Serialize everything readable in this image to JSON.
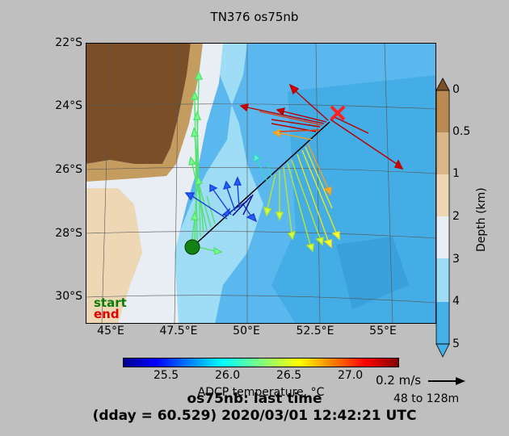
{
  "title": "TN376 os75nb",
  "map": {
    "lat_labels": [
      "22°S",
      "24°S",
      "26°S",
      "28°S",
      "30°S"
    ],
    "lon_labels": [
      "45°E",
      "47.5°E",
      "50°E",
      "52.5°E",
      "55°E"
    ],
    "legend": {
      "start": "start",
      "end": "end"
    },
    "colors": {
      "land_dark": "#7a4f28",
      "land_mid": "#c59c60",
      "shelf": "#eed7b4",
      "shallow": "#e8eef4",
      "sea_light": "#9fdcf6",
      "sea_mid": "#5bb8ee",
      "sea_deep": "#3aa7e4",
      "ship_track": "#000000",
      "start_marker": "#128212",
      "end_marker": "#ff2020"
    }
  },
  "depth_colorbar": {
    "label": "Depth (km)",
    "ticks": [
      "0",
      "0.5",
      "1",
      "2",
      "3",
      "4",
      "5"
    ]
  },
  "temp_colorbar": {
    "label": "ADCP temperature, °C",
    "ticks": [
      "25.5",
      "26.0",
      "26.5",
      "27.0"
    ]
  },
  "scale": {
    "speed": "0.2 m/s",
    "range": "48 to 128m"
  },
  "footer": {
    "line1": "os75nb: last time",
    "line2": "(dday = 60.529) 2020/03/01 12:42:21 UTC"
  }
}
